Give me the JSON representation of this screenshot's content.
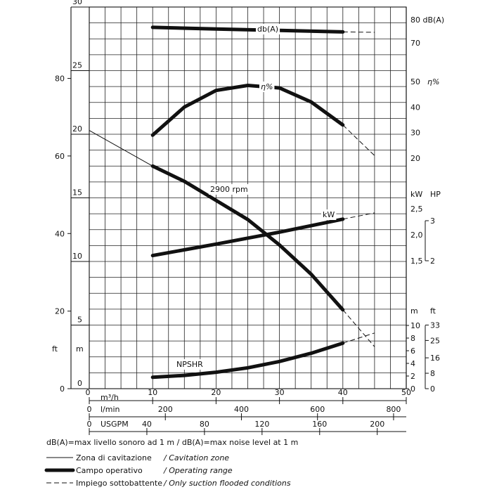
{
  "chart_data": {
    "type": "line",
    "flow_axes": [
      {
        "name": "m3/h",
        "label": "m³/h",
        "ticks": [
          0,
          10,
          20,
          30,
          40,
          50
        ]
      },
      {
        "name": "l/min",
        "label": "l/min",
        "ticks": [
          0,
          200,
          400,
          600,
          800
        ]
      },
      {
        "name": "usgpm",
        "label": "USGPM",
        "ticks": [
          0,
          40,
          80,
          120,
          160,
          200
        ]
      }
    ],
    "xlim": [
      0,
      50
    ],
    "ylim_m": [
      0,
      30
    ],
    "grid": true,
    "head_axes": {
      "m_inner": {
        "label": "m",
        "ticks": [
          0,
          5,
          10,
          15,
          20,
          25,
          30
        ]
      },
      "ft_outer": {
        "label": "ft",
        "ticks": [
          0,
          20,
          40,
          60,
          80
        ]
      }
    },
    "right_axes": {
      "db": {
        "label": "80 dB(A)",
        "ticks": [
          "70"
        ]
      },
      "eta": {
        "label": "50 η%",
        "ticks": [
          "40",
          "30",
          "20"
        ]
      },
      "kw_header": "kW",
      "hp_header": "HP",
      "kw_ticks": [
        "2,5",
        "2,0",
        "1,5"
      ],
      "hp_ticks": [
        "3",
        "2"
      ],
      "npshr_m_header": "m",
      "npshr_ft_header": "ft",
      "npshr_m_ticks": [
        "10",
        "8",
        "6",
        "4",
        "2",
        "0"
      ],
      "npshr_ft_ticks": [
        "33",
        "25",
        "16",
        "8",
        "0"
      ]
    },
    "series": [
      {
        "name": "2900 rpm",
        "style": "head",
        "x": [
          0,
          10,
          15,
          20,
          25,
          30,
          35,
          40,
          45
        ],
        "y": [
          20.3,
          17.5,
          16.3,
          14.8,
          13.3,
          11.3,
          9.0,
          6.2,
          3.3
        ]
      },
      {
        "name": "η%",
        "style": "efficiency",
        "x": [
          10,
          15,
          20,
          25,
          30,
          35,
          40,
          45
        ],
        "y": [
          29,
          40,
          46.5,
          48.5,
          47.5,
          42,
          33,
          21
        ]
      },
      {
        "name": "kW",
        "style": "power",
        "x": [
          10,
          20,
          30,
          40,
          45
        ],
        "y": [
          1.6,
          1.82,
          2.05,
          2.3,
          2.42
        ]
      },
      {
        "name": "db(A)",
        "style": "noise",
        "x": [
          10,
          20,
          30,
          40,
          45
        ],
        "y": [
          76.5,
          75.8,
          75.2,
          74.6,
          74.4
        ]
      },
      {
        "name": "NPSHR",
        "style": "npshr",
        "x": [
          10,
          15,
          20,
          25,
          30,
          35,
          40,
          45
        ],
        "y": [
          1.8,
          2.1,
          2.6,
          3.3,
          4.3,
          5.6,
          7.2,
          8.8
        ]
      }
    ],
    "curve_labels": {
      "head": "2900 rpm",
      "eff": "η%",
      "power": "kW",
      "noise": "db(A)",
      "npshr": "NPSHR"
    },
    "note": "dB(A)=max livello sonoro ad 1 m / dB(A)=max noise level at 1 m",
    "legend": [
      {
        "style": "thin",
        "it": "Zona di cavitazione",
        "en": "/ Cavitation zone"
      },
      {
        "style": "thick",
        "it": "Campo operativo",
        "en": "/ Operating range"
      },
      {
        "style": "dash",
        "it": "Impiego sottobattente",
        "en": "/ Only suction flooded conditions"
      }
    ]
  }
}
